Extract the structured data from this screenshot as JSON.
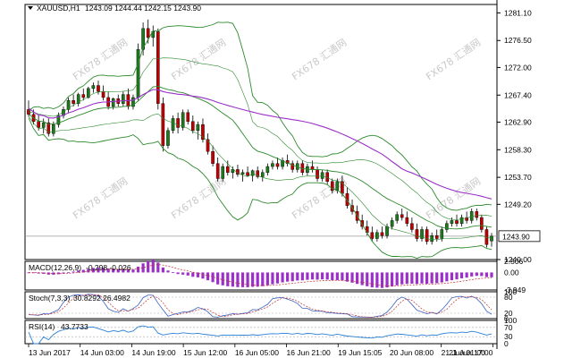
{
  "header": {
    "symbol": "XAUUSD,H1",
    "ohlc": "1243.09 1244.44 1242.15 1243.90"
  },
  "watermark": "FX678 汇通网",
  "colors": {
    "background": "#ffffff",
    "bull_body": "#1c7a1c",
    "bear_body": "#c00000",
    "bollinger": "#2d8a2d",
    "moving_average": "#9b30c9",
    "histogram": "#9b30c9",
    "stoch_main": "#3a62c4",
    "stoch_signal": "#c03030",
    "rsi_line": "#2a7fd4",
    "price_label_bg": "#ffffff"
  },
  "price_axis": {
    "ticks": [
      "1281.10",
      "1276.50",
      "1272.00",
      "1267.40",
      "1262.90",
      "1258.30",
      "1253.70",
      "1249.20",
      "1240.00"
    ],
    "current_price": "1243.90",
    "current_value": 1243.9
  },
  "time_axis": {
    "labels": [
      "13 Jun 2017",
      "14 Jun 03:00",
      "14 Jun 19:00",
      "15 Jun 12:00",
      "16 Jun 05:00",
      "16 Jun 21:00",
      "19 Jun 15:05",
      "20 Jun 08:00",
      "21 Jun 01:00",
      "21 Jun 17:00"
    ]
  },
  "indicators": {
    "macd": {
      "label": "MACD(12,26,9)",
      "values": "-0.298 -0.026",
      "ticks": [
        "2.506",
        "0.00",
        "-3.949"
      ]
    },
    "stoch": {
      "label": "Stoch(7,3,3)",
      "values": "30.8292 26.4982",
      "ticks": [
        "100",
        "80",
        "20",
        "0"
      ]
    },
    "rsi": {
      "label": "RSI(14)",
      "values": "43.7733",
      "ticks": [
        "100",
        "70",
        "30",
        "0"
      ]
    }
  },
  "chart_data": {
    "type": "candlestick",
    "instrument": "XAUUSD",
    "timeframe": "H1",
    "ylim": [
      1240.0,
      1282.5
    ],
    "candles": [
      [
        1265.0,
        1266.5,
        1263.8,
        1264.2
      ],
      [
        1264.2,
        1265.0,
        1262.5,
        1263.0
      ],
      [
        1263.0,
        1264.0,
        1261.5,
        1262.0
      ],
      [
        1262.0,
        1263.5,
        1261.0,
        1262.8
      ],
      [
        1262.8,
        1263.5,
        1260.5,
        1261.0
      ],
      [
        1261.0,
        1263.0,
        1260.5,
        1262.5
      ],
      [
        1262.5,
        1264.5,
        1262.0,
        1264.0
      ],
      [
        1264.0,
        1265.5,
        1263.5,
        1265.0
      ],
      [
        1265.0,
        1267.0,
        1264.5,
        1266.5
      ],
      [
        1266.5,
        1267.5,
        1265.5,
        1266.0
      ],
      [
        1266.0,
        1267.8,
        1265.5,
        1267.5
      ],
      [
        1267.5,
        1268.5,
        1266.5,
        1267.0
      ],
      [
        1267.0,
        1268.8,
        1266.8,
        1268.5
      ],
      [
        1268.5,
        1269.5,
        1267.8,
        1269.0
      ],
      [
        1269.0,
        1269.8,
        1267.5,
        1268.0
      ],
      [
        1268.0,
        1269.0,
        1266.5,
        1267.0
      ],
      [
        1267.0,
        1268.0,
        1265.0,
        1265.5
      ],
      [
        1265.5,
        1267.0,
        1265.0,
        1266.8
      ],
      [
        1266.8,
        1267.5,
        1265.5,
        1266.0
      ],
      [
        1266.0,
        1268.0,
        1265.5,
        1267.5
      ],
      [
        1267.5,
        1268.5,
        1265.0,
        1265.5
      ],
      [
        1265.5,
        1267.5,
        1265.0,
        1267.0
      ],
      [
        1267.0,
        1276.0,
        1266.5,
        1275.0
      ],
      [
        1275.0,
        1279.5,
        1274.0,
        1278.5
      ],
      [
        1278.5,
        1280.0,
        1276.0,
        1277.0
      ],
      [
        1277.0,
        1279.0,
        1275.5,
        1278.0
      ],
      [
        1278.0,
        1278.5,
        1265.0,
        1266.0
      ],
      [
        1266.0,
        1267.0,
        1258.0,
        1259.0
      ],
      [
        1259.0,
        1262.0,
        1258.5,
        1261.5
      ],
      [
        1261.5,
        1264.0,
        1261.0,
        1263.5
      ],
      [
        1263.5,
        1264.5,
        1261.0,
        1262.0
      ],
      [
        1262.0,
        1265.0,
        1261.5,
        1264.5
      ],
      [
        1264.5,
        1265.0,
        1262.5,
        1263.0
      ],
      [
        1263.0,
        1264.0,
        1261.0,
        1261.5
      ],
      [
        1261.5,
        1263.0,
        1260.0,
        1262.5
      ],
      [
        1262.5,
        1263.5,
        1259.5,
        1260.0
      ],
      [
        1260.0,
        1261.0,
        1257.5,
        1258.0
      ],
      [
        1258.0,
        1259.0,
        1255.5,
        1256.0
      ],
      [
        1256.0,
        1257.0,
        1253.0,
        1253.5
      ],
      [
        1253.5,
        1256.0,
        1253.0,
        1255.5
      ],
      [
        1255.5,
        1256.5,
        1254.0,
        1254.5
      ],
      [
        1254.5,
        1255.5,
        1253.5,
        1255.0
      ],
      [
        1255.0,
        1255.8,
        1253.8,
        1254.2
      ],
      [
        1254.2,
        1255.0,
        1253.0,
        1254.5
      ],
      [
        1254.5,
        1255.5,
        1253.8,
        1254.0
      ],
      [
        1254.0,
        1255.0,
        1253.0,
        1254.8
      ],
      [
        1254.8,
        1255.5,
        1253.5,
        1253.8
      ],
      [
        1253.8,
        1255.0,
        1253.0,
        1254.5
      ],
      [
        1254.5,
        1256.0,
        1254.0,
        1255.5
      ],
      [
        1255.5,
        1256.5,
        1255.0,
        1256.0
      ],
      [
        1256.0,
        1257.0,
        1255.0,
        1255.5
      ],
      [
        1255.5,
        1257.0,
        1255.0,
        1256.5
      ],
      [
        1256.5,
        1257.5,
        1255.5,
        1256.0
      ],
      [
        1256.0,
        1256.5,
        1254.5,
        1255.0
      ],
      [
        1255.0,
        1256.5,
        1254.5,
        1256.0
      ],
      [
        1256.0,
        1256.5,
        1254.0,
        1254.5
      ],
      [
        1254.5,
        1256.0,
        1254.0,
        1255.5
      ],
      [
        1255.5,
        1256.5,
        1254.5,
        1255.0
      ],
      [
        1255.0,
        1255.5,
        1253.0,
        1253.5
      ],
      [
        1253.5,
        1255.0,
        1253.0,
        1254.5
      ],
      [
        1254.5,
        1255.0,
        1252.5,
        1253.0
      ],
      [
        1253.0,
        1253.5,
        1251.0,
        1251.5
      ],
      [
        1251.5,
        1253.5,
        1251.0,
        1253.0
      ],
      [
        1253.0,
        1254.0,
        1250.5,
        1251.0
      ],
      [
        1251.0,
        1252.0,
        1248.5,
        1249.0
      ],
      [
        1249.0,
        1250.0,
        1247.5,
        1248.0
      ],
      [
        1248.0,
        1249.0,
        1246.0,
        1246.5
      ],
      [
        1246.5,
        1247.5,
        1245.0,
        1245.5
      ],
      [
        1245.5,
        1246.5,
        1244.0,
        1244.5
      ],
      [
        1244.5,
        1245.5,
        1243.0,
        1243.5
      ],
      [
        1243.5,
        1245.0,
        1243.0,
        1244.5
      ],
      [
        1244.5,
        1245.5,
        1243.5,
        1244.0
      ],
      [
        1244.0,
        1246.0,
        1243.5,
        1245.5
      ],
      [
        1245.5,
        1247.0,
        1245.0,
        1246.5
      ],
      [
        1246.5,
        1248.0,
        1246.0,
        1247.5
      ],
      [
        1247.5,
        1248.5,
        1246.5,
        1247.0
      ],
      [
        1247.0,
        1248.0,
        1245.5,
        1246.0
      ],
      [
        1246.0,
        1247.0,
        1244.5,
        1245.0
      ],
      [
        1245.0,
        1246.0,
        1243.0,
        1243.5
      ],
      [
        1243.5,
        1245.5,
        1243.0,
        1245.0
      ],
      [
        1245.0,
        1245.5,
        1242.5,
        1243.0
      ],
      [
        1243.0,
        1244.5,
        1242.5,
        1244.0
      ],
      [
        1244.0,
        1245.0,
        1243.0,
        1243.5
      ],
      [
        1243.5,
        1245.5,
        1243.0,
        1245.0
      ],
      [
        1245.0,
        1246.5,
        1244.5,
        1246.0
      ],
      [
        1246.0,
        1247.0,
        1245.5,
        1246.5
      ],
      [
        1246.5,
        1247.5,
        1245.5,
        1246.0
      ],
      [
        1246.0,
        1247.5,
        1245.5,
        1247.0
      ],
      [
        1247.0,
        1248.0,
        1246.0,
        1246.5
      ],
      [
        1246.5,
        1248.5,
        1246.0,
        1248.0
      ],
      [
        1248.0,
        1248.5,
        1246.5,
        1247.0
      ],
      [
        1247.0,
        1247.5,
        1244.5,
        1245.0
      ],
      [
        1245.0,
        1245.5,
        1242.0,
        1242.5
      ],
      [
        1243.09,
        1244.44,
        1242.15,
        1243.9
      ]
    ]
  }
}
